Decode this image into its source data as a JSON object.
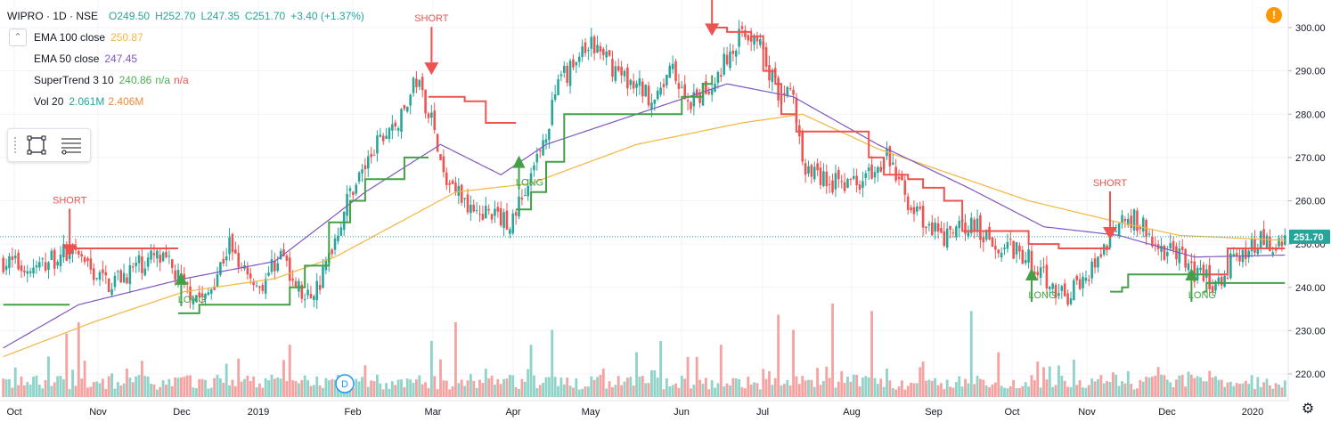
{
  "header": {
    "symbol": "WIPRO · 1D · NSE",
    "open": "O249.50",
    "high": "H252.70",
    "low": "L247.35",
    "close": "C251.70",
    "change": "+3.40 (+1.37%)"
  },
  "indicators": [
    {
      "name": "EMA 100 close",
      "values": [
        "250.87"
      ],
      "colors": [
        "#f4b63f"
      ]
    },
    {
      "name": "EMA 50 close",
      "values": [
        "247.45"
      ],
      "colors": [
        "#8e5cc4"
      ]
    },
    {
      "name": "SuperTrend 3 10",
      "values": [
        "240.86",
        "n/a",
        "n/a"
      ],
      "colors": [
        "#4caf50",
        "#4caf50",
        "#ef5350"
      ]
    },
    {
      "name": "Vol 20",
      "values": [
        "2.061M",
        "2.406M"
      ],
      "colors": [
        "#26a69a",
        "#ef8a3c"
      ]
    }
  ],
  "icons": {
    "collapse": "chevron-up-icon",
    "rectangle_tool": "rectangle-icon",
    "settings_tool": "lines-settings-icon",
    "warning": "warning-icon",
    "gear": "gear-icon",
    "event": "dividend-event-icon"
  },
  "event_marker_label": "D",
  "warning_label": "!",
  "colors": {
    "up": "#26a69a",
    "down": "#ef5350",
    "ema100": "#f4b63f",
    "ema50": "#7e57c2",
    "st_up": "#43a047",
    "st_down": "#ef5350",
    "vol_up": "#8fd3c9",
    "vol_down": "#f5a3a1",
    "price_label_bg": "#26a69a"
  },
  "chart_data": {
    "type": "candlestick",
    "title": "WIPRO · 1D · NSE",
    "ylim": [
      215,
      303
    ],
    "y_ticks": [
      "300.00",
      "290.00",
      "280.00",
      "270.00",
      "260.00",
      "250.00",
      "240.00",
      "230.00",
      "220.00"
    ],
    "x_ticks": [
      "Oct",
      "Nov",
      "Dec",
      "2019",
      "Feb",
      "Mar",
      "Apr",
      "May",
      "Jun",
      "Jul",
      "Aug",
      "Sep",
      "Oct",
      "Nov",
      "Dec",
      "2020"
    ],
    "last_price_label": "251.70",
    "last_price": 251.7,
    "close_anchors": [
      [
        0,
        246
      ],
      [
        10,
        244
      ],
      [
        20,
        248
      ],
      [
        35,
        241
      ],
      [
        50,
        247
      ],
      [
        55,
        245
      ],
      [
        60,
        240
      ],
      [
        67,
        237
      ],
      [
        75,
        250
      ],
      [
        85,
        240
      ],
      [
        92,
        248
      ],
      [
        100,
        237
      ],
      [
        105,
        241
      ],
      [
        115,
        262
      ],
      [
        125,
        274
      ],
      [
        132,
        279
      ],
      [
        137,
        288
      ],
      [
        142,
        279
      ],
      [
        146,
        265
      ],
      [
        155,
        259
      ],
      [
        168,
        255
      ],
      [
        175,
        265
      ],
      [
        185,
        288
      ],
      [
        195,
        296
      ],
      [
        205,
        289
      ],
      [
        215,
        284
      ],
      [
        222,
        290
      ],
      [
        228,
        282
      ],
      [
        235,
        287
      ],
      [
        245,
        299
      ],
      [
        250,
        298
      ],
      [
        256,
        286
      ],
      [
        262,
        284
      ],
      [
        265,
        268
      ],
      [
        275,
        264
      ],
      [
        285,
        265
      ],
      [
        293,
        270
      ],
      [
        300,
        260
      ],
      [
        306,
        254
      ],
      [
        312,
        251
      ],
      [
        320,
        255
      ],
      [
        330,
        250
      ],
      [
        340,
        247
      ],
      [
        352,
        237
      ],
      [
        360,
        244
      ],
      [
        367,
        252
      ],
      [
        372,
        257
      ],
      [
        378,
        254
      ],
      [
        382,
        249
      ],
      [
        389,
        248
      ],
      [
        395,
        243
      ],
      [
        402,
        241
      ],
      [
        410,
        248
      ],
      [
        418,
        251
      ],
      [
        422,
        248
      ],
      [
        425,
        251.7
      ]
    ],
    "ema100_anchors": [
      [
        0,
        224
      ],
      [
        30,
        232
      ],
      [
        60,
        239
      ],
      [
        90,
        242
      ],
      [
        110,
        247
      ],
      [
        150,
        262
      ],
      [
        175,
        264
      ],
      [
        210,
        273
      ],
      [
        245,
        278
      ],
      [
        265,
        280
      ],
      [
        290,
        272
      ],
      [
        315,
        266
      ],
      [
        340,
        260
      ],
      [
        370,
        255
      ],
      [
        390,
        252
      ],
      [
        425,
        250.87
      ]
    ],
    "ema50_anchors": [
      [
        0,
        226
      ],
      [
        25,
        236
      ],
      [
        60,
        242
      ],
      [
        90,
        246
      ],
      [
        120,
        262
      ],
      [
        145,
        273
      ],
      [
        165,
        266
      ],
      [
        180,
        273
      ],
      [
        210,
        280
      ],
      [
        240,
        287
      ],
      [
        262,
        284
      ],
      [
        290,
        273
      ],
      [
        320,
        263
      ],
      [
        345,
        254
      ],
      [
        370,
        252
      ],
      [
        395,
        247
      ],
      [
        425,
        247.45
      ]
    ],
    "supertrend": [
      {
        "trend": "up",
        "points": [
          [
            0,
            236
          ],
          [
            22,
            236
          ],
          [
            22,
            236
          ]
        ]
      },
      {
        "trend": "down",
        "points": [
          [
            22,
            249
          ],
          [
            58,
            249
          ]
        ]
      },
      {
        "trend": "up",
        "points": [
          [
            58,
            234
          ],
          [
            65,
            234
          ],
          [
            65,
            236
          ],
          [
            80,
            236
          ],
          [
            93,
            236
          ],
          [
            95,
            240
          ],
          [
            100,
            245
          ],
          [
            108,
            255
          ],
          [
            115,
            260
          ],
          [
            120,
            265
          ],
          [
            128,
            265
          ],
          [
            133,
            270
          ],
          [
            141,
            270
          ]
        ]
      },
      {
        "trend": "down",
        "points": [
          [
            141,
            284
          ],
          [
            150,
            284
          ],
          [
            153,
            283
          ],
          [
            160,
            278
          ],
          [
            170,
            278
          ]
        ]
      },
      {
        "trend": "up",
        "points": [
          [
            170,
            258
          ],
          [
            175,
            262
          ],
          [
            180,
            269
          ],
          [
            186,
            280
          ],
          [
            215,
            280
          ],
          [
            225,
            284
          ],
          [
            232,
            287
          ],
          [
            235,
            289
          ]
        ]
      },
      {
        "trend": "down",
        "points": [
          [
            235,
            300
          ],
          [
            240,
            299
          ],
          [
            248,
            298
          ],
          [
            252,
            290
          ],
          [
            256,
            287
          ],
          [
            258,
            280
          ],
          [
            263,
            276
          ],
          [
            283,
            276
          ],
          [
            287,
            270
          ],
          [
            292,
            266
          ],
          [
            300,
            265
          ],
          [
            305,
            263
          ],
          [
            312,
            260
          ],
          [
            318,
            253
          ],
          [
            336,
            253
          ],
          [
            340,
            250
          ],
          [
            350,
            249
          ],
          [
            363,
            249
          ],
          [
            367,
            249
          ]
        ]
      },
      {
        "trend": "up",
        "points": [
          [
            367,
            239
          ],
          [
            371,
            240
          ],
          [
            373,
            243
          ],
          [
            378,
            243
          ],
          [
            383,
            243
          ],
          [
            400,
            243
          ]
        ]
      },
      {
        "trend": "down",
        "points": [
          [
            400,
            243
          ],
          [
            405,
            243
          ],
          [
            406,
            249
          ],
          [
            425,
            249
          ]
        ]
      },
      {
        "trend": "up",
        "points": [
          [
            398,
            239
          ],
          [
            399,
            241
          ],
          [
            414,
            241
          ],
          [
            425,
            241
          ]
        ]
      }
    ],
    "signals": [
      {
        "label": "SHORT",
        "type": "short",
        "bar": 22,
        "price": 252
      },
      {
        "label": "LONG",
        "type": "long",
        "bar": 59,
        "price": 241
      },
      {
        "label": "SHORT",
        "type": "short",
        "bar": 142,
        "price": 294
      },
      {
        "label": "LONG",
        "type": "long",
        "bar": 171,
        "price": 268
      },
      {
        "label": "SHORT",
        "type": "short",
        "bar": 235,
        "price": 303
      },
      {
        "label": "LONG",
        "type": "long",
        "bar": 341,
        "price": 242
      },
      {
        "label": "SHORT",
        "type": "short",
        "bar": 367,
        "price": 256
      },
      {
        "label": "LONG",
        "type": "long",
        "bar": 394,
        "price": 242
      }
    ],
    "volume_spikes": [
      [
        21,
        17
      ],
      [
        25,
        20
      ],
      [
        95,
        14
      ],
      [
        142,
        15
      ],
      [
        150,
        20
      ],
      [
        175,
        14
      ],
      [
        182,
        18
      ],
      [
        210,
        12
      ],
      [
        218,
        15
      ],
      [
        238,
        14
      ],
      [
        257,
        22
      ],
      [
        262,
        18
      ],
      [
        275,
        25
      ],
      [
        288,
        23
      ],
      [
        321,
        23
      ],
      [
        330,
        12
      ],
      [
        345,
        8
      ],
      [
        355,
        10
      ],
      [
        400,
        7
      ]
    ]
  }
}
